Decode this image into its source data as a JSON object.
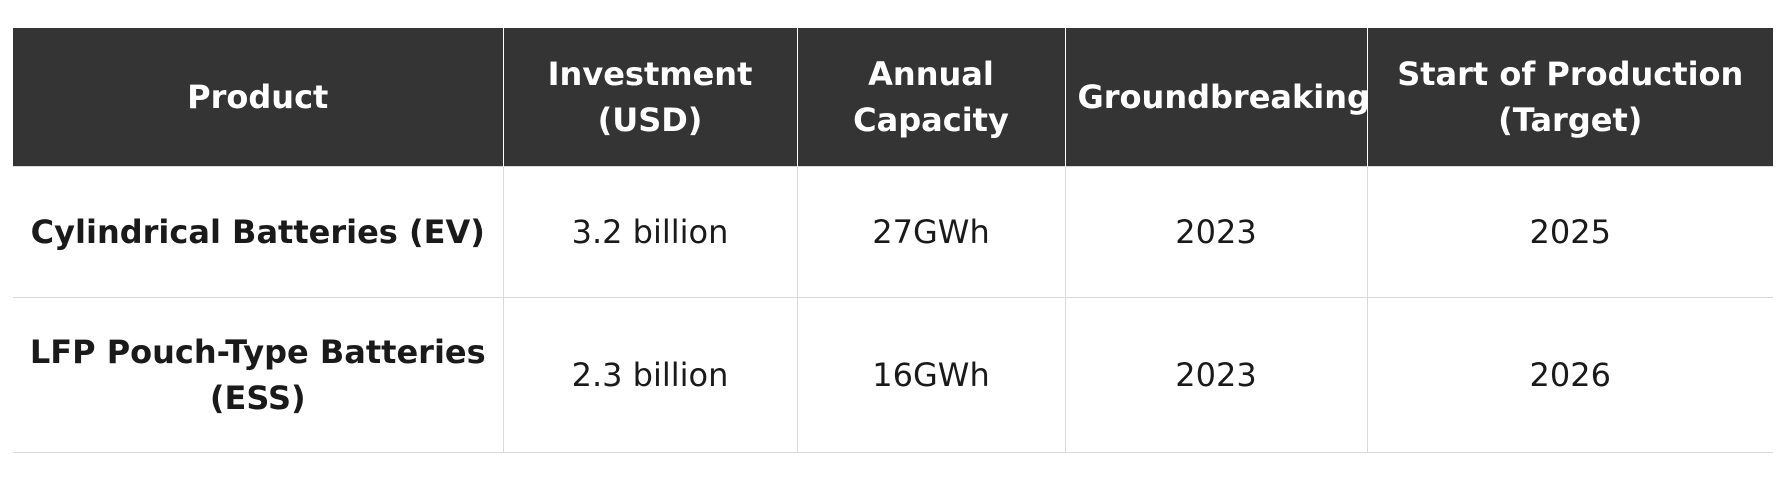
{
  "table": {
    "headers": [
      "Product",
      "Investment\n(USD)",
      "Annual\nCapacity",
      "Groundbreaking",
      "Start of Production\n(Target)"
    ],
    "rows": [
      [
        "Cylindrical Batteries (EV)",
        "3.2 billion",
        "27GWh",
        "2023",
        "2025"
      ],
      [
        "LFP Pouch-Type Batteries (ESS)",
        "2.3 billion",
        "16GWh",
        "2023",
        "2026"
      ]
    ]
  },
  "colors": {
    "header_bg": "#343434",
    "header_text": "#ffffff",
    "border": "#d9d9d9",
    "body_text": "#1a1a1a"
  }
}
